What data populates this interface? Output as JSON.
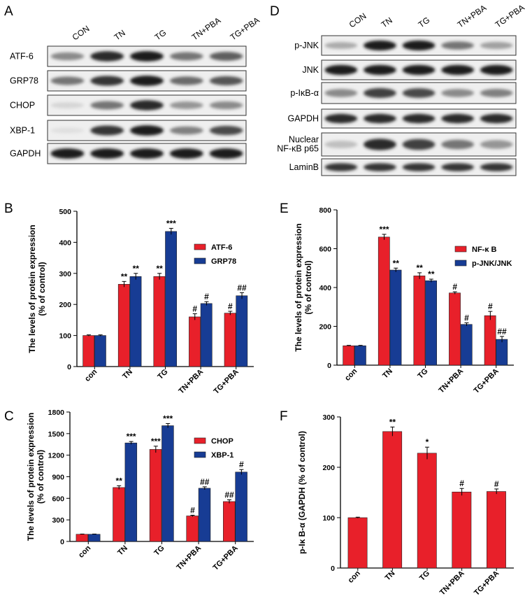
{
  "panels": {
    "A": "A",
    "B": "B",
    "C": "C",
    "D": "D",
    "E": "E",
    "F": "F"
  },
  "blots": [
    {
      "panel": "A",
      "lanes": [
        "CON",
        "TN",
        "TG",
        "TN+PBA",
        "TG+PBA"
      ],
      "rows": [
        {
          "label": "ATF-6",
          "intensity": [
            0.45,
            0.9,
            0.95,
            0.55,
            0.65
          ]
        },
        {
          "label": "GRP78",
          "intensity": [
            0.55,
            0.85,
            0.95,
            0.6,
            0.7
          ]
        },
        {
          "label": "CHOP",
          "intensity": [
            0.1,
            0.55,
            0.9,
            0.4,
            0.45
          ]
        },
        {
          "label": "XBP-1",
          "intensity": [
            0.05,
            0.85,
            0.95,
            0.5,
            0.75
          ]
        },
        {
          "label": "GAPDH",
          "intensity": [
            0.95,
            0.95,
            0.95,
            0.95,
            0.95
          ]
        }
      ]
    },
    {
      "panel": "D",
      "lanes": [
        "CON",
        "TN",
        "TG",
        "TN+PBA",
        "TG+PBA"
      ],
      "rows": [
        {
          "label": "p-JNK",
          "intensity": [
            0.3,
            0.95,
            0.95,
            0.55,
            0.35
          ]
        },
        {
          "label": "JNK",
          "intensity": [
            0.95,
            0.95,
            0.95,
            0.95,
            0.95
          ]
        },
        {
          "label": "p-IκB-α",
          "intensity": [
            0.45,
            0.8,
            0.75,
            0.45,
            0.5
          ]
        },
        {
          "label": "GAPDH",
          "intensity": [
            0.9,
            0.9,
            0.9,
            0.9,
            0.9
          ]
        },
        {
          "label": "Nuclear NF-κB p65",
          "intensity": [
            0.2,
            0.9,
            0.8,
            0.55,
            0.4
          ]
        },
        {
          "label": "LaminB",
          "intensity": [
            0.85,
            0.85,
            0.85,
            0.85,
            0.85
          ]
        }
      ]
    }
  ],
  "chart_data": [
    {
      "panel": "B",
      "type": "bar",
      "categories": [
        "con",
        "TN",
        "TG",
        "TN+PBA",
        "TG+PBA"
      ],
      "series": [
        {
          "name": "ATF-6",
          "color": "#e8202a",
          "values": [
            100,
            265,
            290,
            160,
            172
          ],
          "errors": [
            2,
            9,
            10,
            10,
            6
          ],
          "sig": [
            "",
            "**",
            "**",
            "#",
            "#"
          ]
        },
        {
          "name": "GRP78",
          "color": "#173c94",
          "values": [
            100,
            290,
            435,
            203,
            228
          ],
          "errors": [
            2,
            10,
            10,
            6,
            10
          ],
          "sig": [
            "",
            "**",
            "***",
            "#",
            "##"
          ]
        }
      ],
      "ylabel": "The levels of protein expression\n(% of control)",
      "ylim": [
        0,
        500
      ],
      "yticks": [
        0,
        100,
        200,
        300,
        400,
        500
      ],
      "legend": "right"
    },
    {
      "panel": "C",
      "type": "bar",
      "categories": [
        "con",
        "TN",
        "TG",
        "TN+PBA",
        "TG+PBA"
      ],
      "series": [
        {
          "name": "CHOP",
          "color": "#e8202a",
          "values": [
            100,
            750,
            1280,
            355,
            555
          ],
          "errors": [
            3,
            25,
            45,
            10,
            25
          ],
          "sig": [
            "",
            "**",
            "***",
            "#",
            "##"
          ]
        },
        {
          "name": "XBP-1",
          "color": "#173c94",
          "values": [
            100,
            1370,
            1610,
            740,
            965
          ],
          "errors": [
            3,
            20,
            30,
            20,
            35
          ],
          "sig": [
            "",
            "***",
            "***",
            "##",
            "#"
          ]
        }
      ],
      "ylabel": "The levels of protein expression\n(% of control)",
      "ylim": [
        0,
        1800
      ],
      "yticks": [
        0,
        300,
        600,
        900,
        1200,
        1500,
        1800
      ],
      "legend": "right"
    },
    {
      "panel": "E",
      "type": "bar",
      "categories": [
        "con",
        "TN",
        "TG",
        "TN+PBA",
        "TG+PBA"
      ],
      "series": [
        {
          "name": "NF-κ B",
          "color": "#e8202a",
          "values": [
            100,
            660,
            460,
            372,
            255
          ],
          "errors": [
            2,
            14,
            16,
            6,
            22
          ],
          "sig": [
            "",
            "***",
            "**",
            "#",
            "#"
          ]
        },
        {
          "name": "p-JNK/JNK",
          "color": "#173c94",
          "values": [
            100,
            490,
            435,
            210,
            133
          ],
          "errors": [
            2,
            10,
            8,
            8,
            15
          ],
          "sig": [
            "",
            "**",
            "**",
            "#",
            "##"
          ]
        }
      ],
      "ylabel": "The levels of protein expression\n(% of control)",
      "ylim": [
        0,
        800
      ],
      "yticks": [
        0,
        200,
        400,
        600,
        800
      ],
      "legend": "right"
    },
    {
      "panel": "F",
      "type": "bar",
      "categories": [
        "con",
        "TN",
        "TG",
        "TN+PBA",
        "TG+PBA"
      ],
      "series": [
        {
          "name": "",
          "color": "#e8202a",
          "values": [
            100,
            271,
            228,
            151,
            152
          ],
          "errors": [
            1,
            9,
            12,
            7,
            5
          ],
          "sig": [
            "",
            "**",
            "*",
            "#",
            "#"
          ]
        }
      ],
      "ylabel": "p-Iκ B-α (GAPDH (% of control)",
      "ylim": [
        0,
        300
      ],
      "yticks": [
        0,
        100,
        200,
        300
      ],
      "legend": "none"
    }
  ]
}
